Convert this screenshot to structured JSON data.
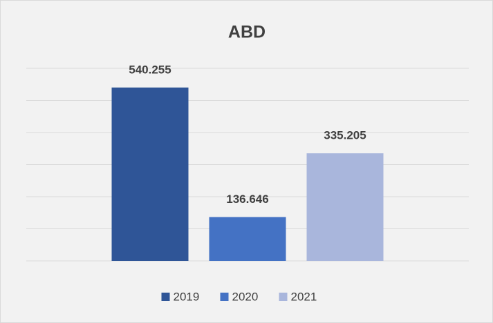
{
  "chart_data": {
    "type": "bar",
    "title": "ABD",
    "categories": [
      null
    ],
    "series": [
      {
        "name": "2019",
        "color": "#2f5597",
        "values": [
          540.255
        ]
      },
      {
        "name": "2020",
        "color": "#4472c4",
        "values": [
          136.646
        ]
      },
      {
        "name": "2021",
        "color": "#a9b6dc",
        "values": [
          335.205
        ]
      }
    ],
    "ylim": [
      0,
      600
    ],
    "yticks": [
      0,
      100,
      200,
      300,
      400,
      500,
      600
    ],
    "grid": true,
    "legend": "bottom"
  }
}
